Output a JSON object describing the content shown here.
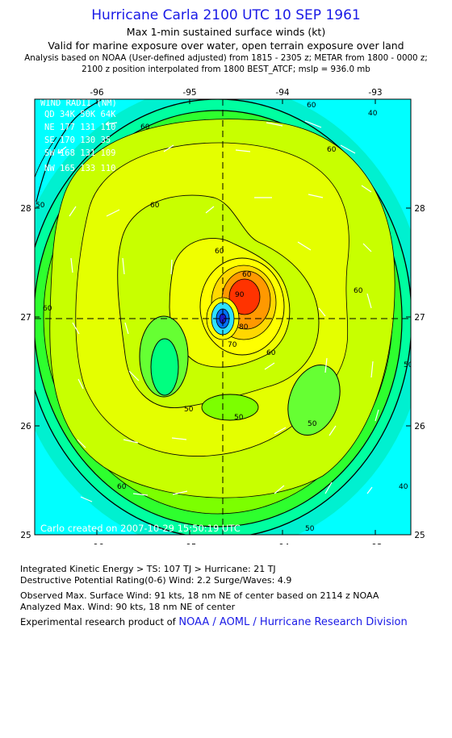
{
  "header": {
    "title": "Hurricane Carla 2100 UTC 10 SEP 1961",
    "subtitle1": "Max 1-min sustained surface winds (kt)",
    "subtitle2": "Valid for marine exposure over water, open terrain exposure over land",
    "subtitle3": "Analysis based on  NOAA (User-defined adjusted) from 1815 - 2305 z;  METAR from 1800 - 0000 z;",
    "subtitle4": "2100 z position interpolated from 1800 BEST_ATCF; mslp = 936.0 mb"
  },
  "map": {
    "lon_ticks": [
      "-96",
      "-95",
      "-94",
      "-93"
    ],
    "lat_ticks": [
      "28",
      "27",
      "26",
      "25"
    ],
    "wind_radii": {
      "title": "WIND RADII (NM)",
      "header": "QD  34K  50K  64K",
      "rows": [
        "NE  177  131  110",
        "SE  170  130   35",
        "SW  168  131  109",
        "NW  165  133  110"
      ]
    },
    "contour_labels": [
      "60",
      "40",
      "60",
      "60",
      "60",
      "50",
      "60",
      "60",
      "60",
      "50",
      "50",
      "50",
      "60",
      "40",
      "50",
      "90",
      "80",
      "70",
      "60",
      "50",
      "60"
    ],
    "credit": "Carlo   created on 2007-10-29 15:50:19 UTC",
    "colors": {
      "cyan": "#00e5ff",
      "aqua": "#00ffb4",
      "green": "#33ff33",
      "lime": "#c8ff00",
      "yellow": "#ffff2a",
      "orange": "#ff9900",
      "red": "#ff3300"
    }
  },
  "footer": {
    "line1": "Integrated Kinetic Energy > TS: 107 TJ   > Hurricane: 21 TJ",
    "line2": "Destructive Potential Rating(0-6)   Wind: 2.2 Surge/Waves: 4.9",
    "line3": "Observed Max. Surface Wind: 91 kts, 18 nm NE of center based on 2114 z NOAA",
    "line4": "Analyzed Max. Wind: 90 kts, 18 nm NE of center",
    "line5_prefix": "Experimental research product of",
    "line5_link": "NOAA / AOML / Hurricane Research Division"
  }
}
